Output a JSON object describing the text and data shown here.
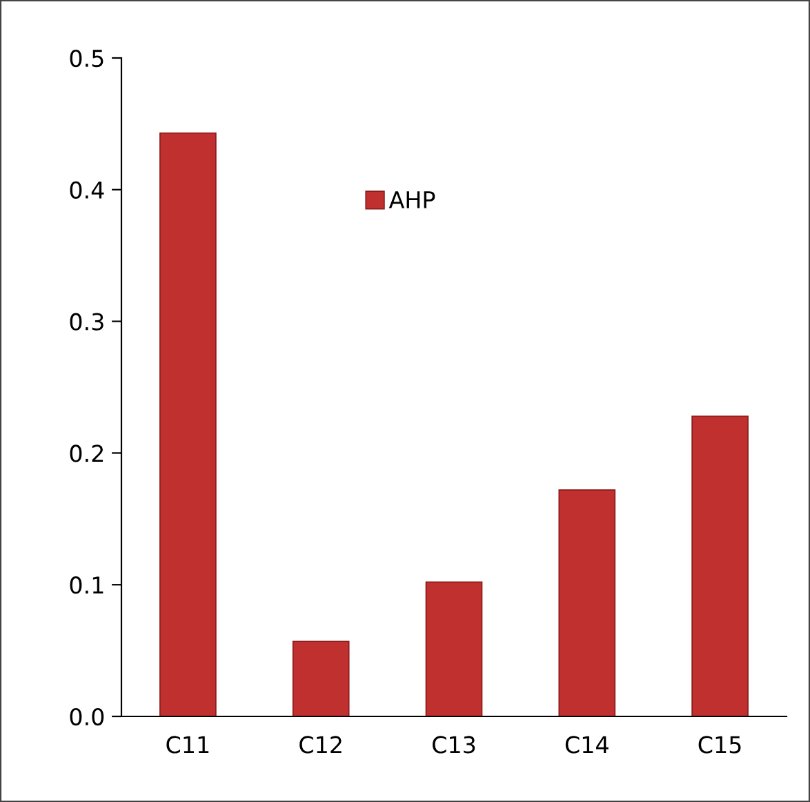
{
  "chart_data": {
    "type": "bar",
    "categories": [
      "C11",
      "C12",
      "C13",
      "C14",
      "C15"
    ],
    "series": [
      {
        "name": "AHP",
        "color": "#c0302e",
        "values": [
          0.443,
          0.057,
          0.102,
          0.172,
          0.228
        ]
      }
    ],
    "ylim": [
      0,
      0.5
    ],
    "yticks": [
      {
        "value": 0,
        "label": "0.0"
      },
      0.1,
      0.2,
      0.3,
      0.4,
      0.5
    ],
    "grid": false,
    "legend": "top"
  }
}
